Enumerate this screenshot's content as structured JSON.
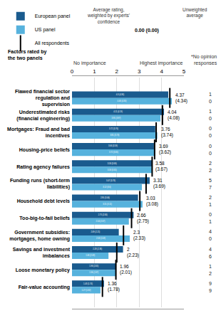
{
  "chart_data": {
    "type": "bar",
    "orientation": "horizontal",
    "data_labels": true,
    "grid": true,
    "legend": "top left",
    "categories": [
      "Flawed financial sector regulation and supervision",
      "Underestimated risks (financial engineering)",
      "Mortgages: Fraud and bad incentives",
      "Housing-price beliefs",
      "Rating agency failures",
      "Funding runs (short-term liabilities)",
      "Household debt levels",
      "Too-big-to-fail beliefs",
      "Government subsidies: mortgages, home owning",
      "Savings and investment imbalances",
      "Loose monetary policy",
      "Fair-value accounting"
    ],
    "series": [
      {
        "name": "European panel",
        "color": "#1a5b8e",
        "values": [
          4.3,
          4.11,
          3.72,
          3.66,
          3.58,
          3.47,
          2.95,
          2.75,
          2.09,
          2.28,
          1.96,
          1.43
        ],
        "value_labels": [
          "4.3 (4.36)",
          "4.11 (4.19)",
          "3.72 (3.76)",
          "3.66 (3.59)",
          "3.58 (3.69)",
          "3.47 (3.78)",
          "2.95 (3.06)",
          "2.75 (2.84)",
          "2.09 (2.21)",
          "2.28 (2.36)",
          "1.96 (2.05)",
          "1.43 (1.74)"
        ],
        "no_opinion": [
          1,
          1,
          0,
          0,
          2,
          5,
          2,
          0,
          4,
          4,
          1,
          9
        ]
      },
      {
        "name": "US panel",
        "color": "#56b2dd",
        "values": [
          4.46,
          3.95,
          3.81,
          3.72,
          3.58,
          3.12,
          3.15,
          2.54,
          2.58,
          1.63,
          1.96,
          1.27
        ],
        "value_labels": [
          "4.46 (4.30)",
          "3.95 (3.97)",
          "3.81 (3.73)",
          "3.72 (3.65)",
          "3.58 (3.65)",
          "3.12 (3.6)",
          "3.15 (3.11)",
          "2.54 (2.67)",
          "2.58 (2.43)",
          "1.63 (2.09)",
          "1.96 (1.97)",
          "1.27 (1.82)"
        ],
        "no_opinion": [
          0,
          0,
          0,
          0,
          2,
          7,
          1,
          1,
          0,
          6,
          2,
          9
        ]
      },
      {
        "name": "All respondents",
        "type": "scatter",
        "marker": "line-ns",
        "color": "#000000",
        "values": [
          4.37,
          4.04,
          3.76,
          3.69,
          3.58,
          3.31,
          3.03,
          2.66,
          2.3,
          2,
          1.96,
          1.36
        ],
        "value_labels": [
          "4.37 (4.34)",
          "4.04 (4.08)",
          "3.76 (3.74)",
          "3.69 (3.62)",
          "3.58 (3.67)",
          "3.31 (3.69)",
          "3.03 (3.08)",
          "2.66 (2.75)",
          "2.3 (2.33)",
          "2 (2.23)",
          "1.96 (2.01)",
          "1.36 (1.78)"
        ]
      }
    ],
    "xlim": [
      0,
      5
    ],
    "xticks": [
      0,
      1,
      2,
      3,
      4,
      5
    ],
    "annotations": {
      "weighted": "Average rating, weighted by experts' confidence",
      "example": "0.00 (0.00)",
      "unweighted": "Unweighted average",
      "factors": "Factors rated by the two panels",
      "low": "No importance",
      "high": "Highest importance",
      "no_opinion": "*No opinion responses"
    }
  }
}
